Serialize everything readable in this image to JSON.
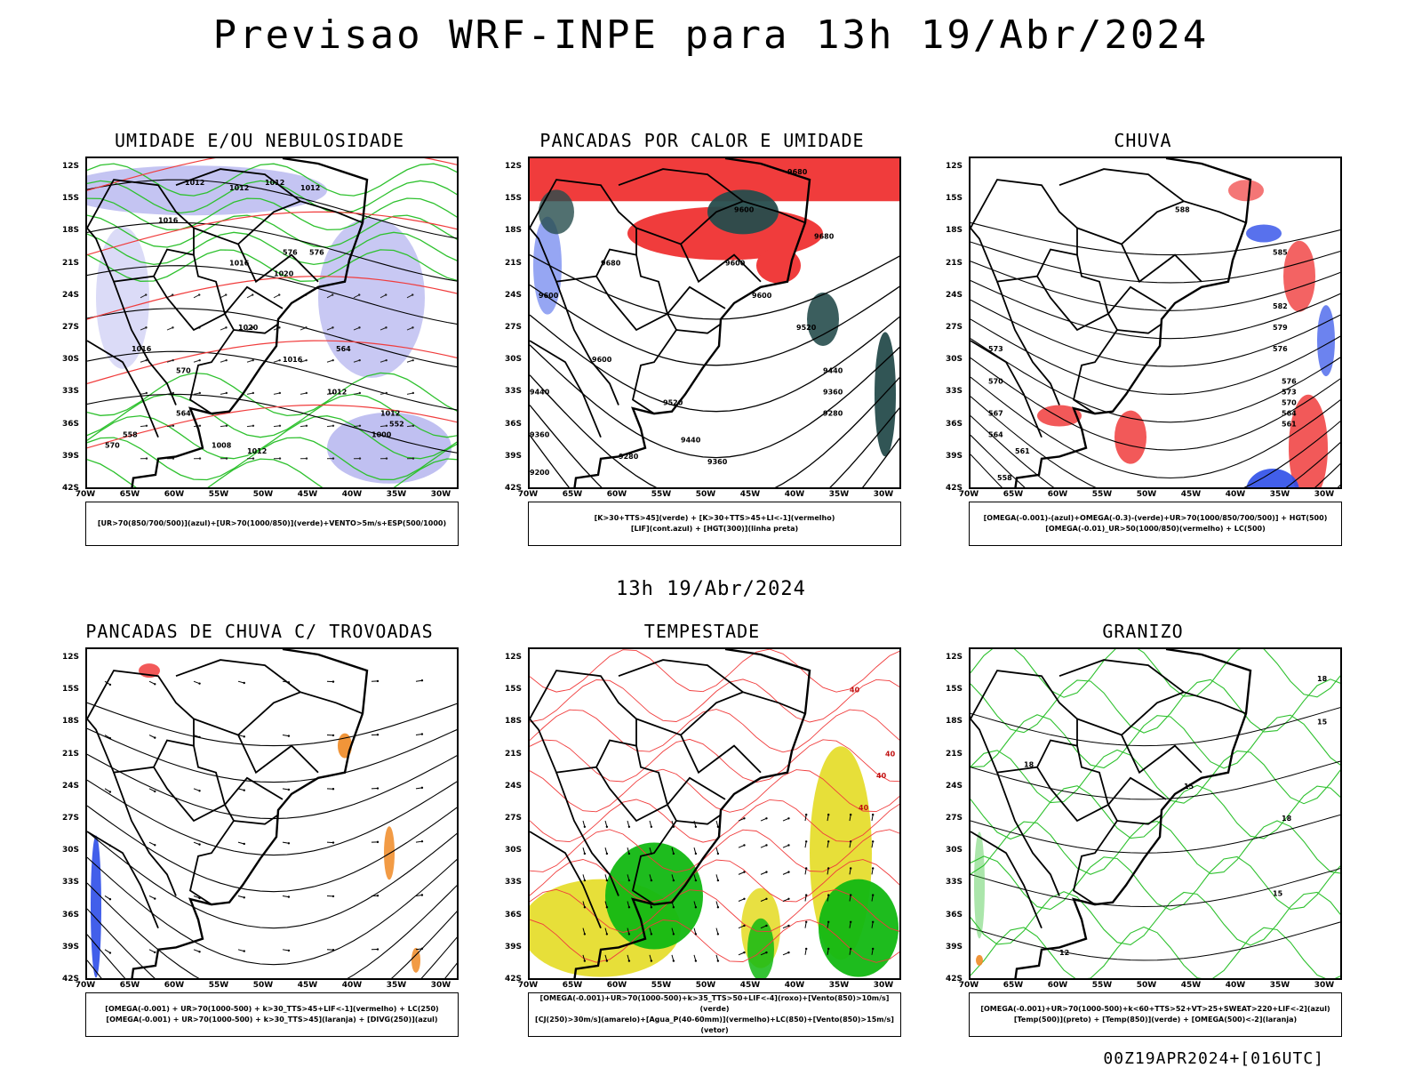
{
  "header": {
    "title": "Previsao WRF-INPE  para 13h 19/Abr/2024",
    "mid_label": "13h 19/Abr/2024",
    "footer": "00Z19APR2024+[016UTC]"
  },
  "axes": {
    "lat_labels": [
      "12S",
      "15S",
      "18S",
      "21S",
      "24S",
      "27S",
      "30S",
      "33S",
      "36S",
      "39S",
      "42S"
    ],
    "lon_labels": [
      "70W",
      "65W",
      "60W",
      "55W",
      "50W",
      "45W",
      "40W",
      "35W",
      "30W"
    ]
  },
  "colors": {
    "ocean_label": "#ffffff",
    "lavender": "#b0b0ee",
    "green": "#2ec12e",
    "red": "#f03c3c",
    "blue": "#2e4ee8",
    "dark_teal": "#264c4c",
    "yellow": "#e6dd2e",
    "bright_green": "#12b812",
    "orange": "#f08a24"
  },
  "panels": [
    {
      "id": "p1",
      "title": "UMIDADE E/OU NEBULOSIDADE",
      "legend": [
        "[UR>70(850/700/500)](azul)+[UR>70(1000/850)](verde)+VENTO>5m/s+ESP(500/1000)"
      ],
      "contour_labels": [
        "1012",
        "1012",
        "1012",
        "1012",
        "1016",
        "1016",
        "1020",
        "1020",
        "1016",
        "1012",
        "1008",
        "1012",
        "1016",
        "1012",
        "1000",
        "576",
        "570",
        "564",
        "558",
        "552",
        "570",
        "564",
        "576"
      ]
    },
    {
      "id": "p2",
      "title": "PANCADAS POR CALOR E UMIDADE",
      "legend": [
        "[K>30+TTS>45](verde) + [K>30+TTS>45+LI<-1](vermelho)",
        "[LIF](cont.azul) + [HGT(300)](linha preta)"
      ],
      "contour_labels": [
        "9680",
        "9600",
        "9680",
        "9600",
        "9680",
        "9600",
        "9600",
        "9520",
        "9440",
        "9360",
        "9280",
        "9520",
        "9440",
        "9360",
        "9280",
        "9200",
        "9600",
        "9360",
        "9440"
      ]
    },
    {
      "id": "p3",
      "title": "CHUVA",
      "legend": [
        "[OMEGA(-0.001)-(azul)+OMEGA(-0.3)-(verde)+UR>70(1000/850/700/500)] + HGT(500)",
        "[OMEGA(-0.01)_UR>50(1000/850)(vermelho) + LC(500)"
      ],
      "contour_labels": [
        "588",
        "585",
        "582",
        "579",
        "576",
        "573",
        "570",
        "567",
        "564",
        "561",
        "558",
        "576",
        "573",
        "570",
        "564",
        "561"
      ]
    },
    {
      "id": "p4",
      "title": "PANCADAS DE CHUVA C/ TROVOADAS",
      "legend": [
        "[OMEGA(-0.001) + UR>70(1000-500) + k>30_TTS>45+LIF<-1](vermelho) + LC(250)",
        "[OMEGA(-0.001) + UR>70(1000-500) + k>30_TTS>45](laranja) + [DIVG(250)](azul)"
      ],
      "contour_labels": []
    },
    {
      "id": "p5",
      "title": "TEMPESTADE",
      "legend": [
        "[OMEGA(-0.001)+UR>70(1000-500)+k>35_TTS>50+LIF<-4](roxo)+[Vento(850)>10m/s](verde)",
        "[CJ(250)>30m/s](amarelo)+[Agua_P(40-60mm)](vermelho)+LC(850)+[Vento(850)>15m/s](vetor)"
      ],
      "contour_labels": [
        "40",
        "40",
        "40",
        "40"
      ]
    },
    {
      "id": "p6",
      "title": "GRANIZO",
      "legend": [
        "[OMEGA(-0.001)+UR>70(1000-500)+k<60+TTS>52+VT>25+SWEAT>220+LIF<-2](azul)",
        "[Temp(500)](preto) + [Temp(850)](verde) + [OMEGA(500)<-2](laranja)"
      ],
      "contour_labels": [
        "18",
        "15",
        "18",
        "15",
        "18",
        "15",
        "12"
      ]
    }
  ]
}
